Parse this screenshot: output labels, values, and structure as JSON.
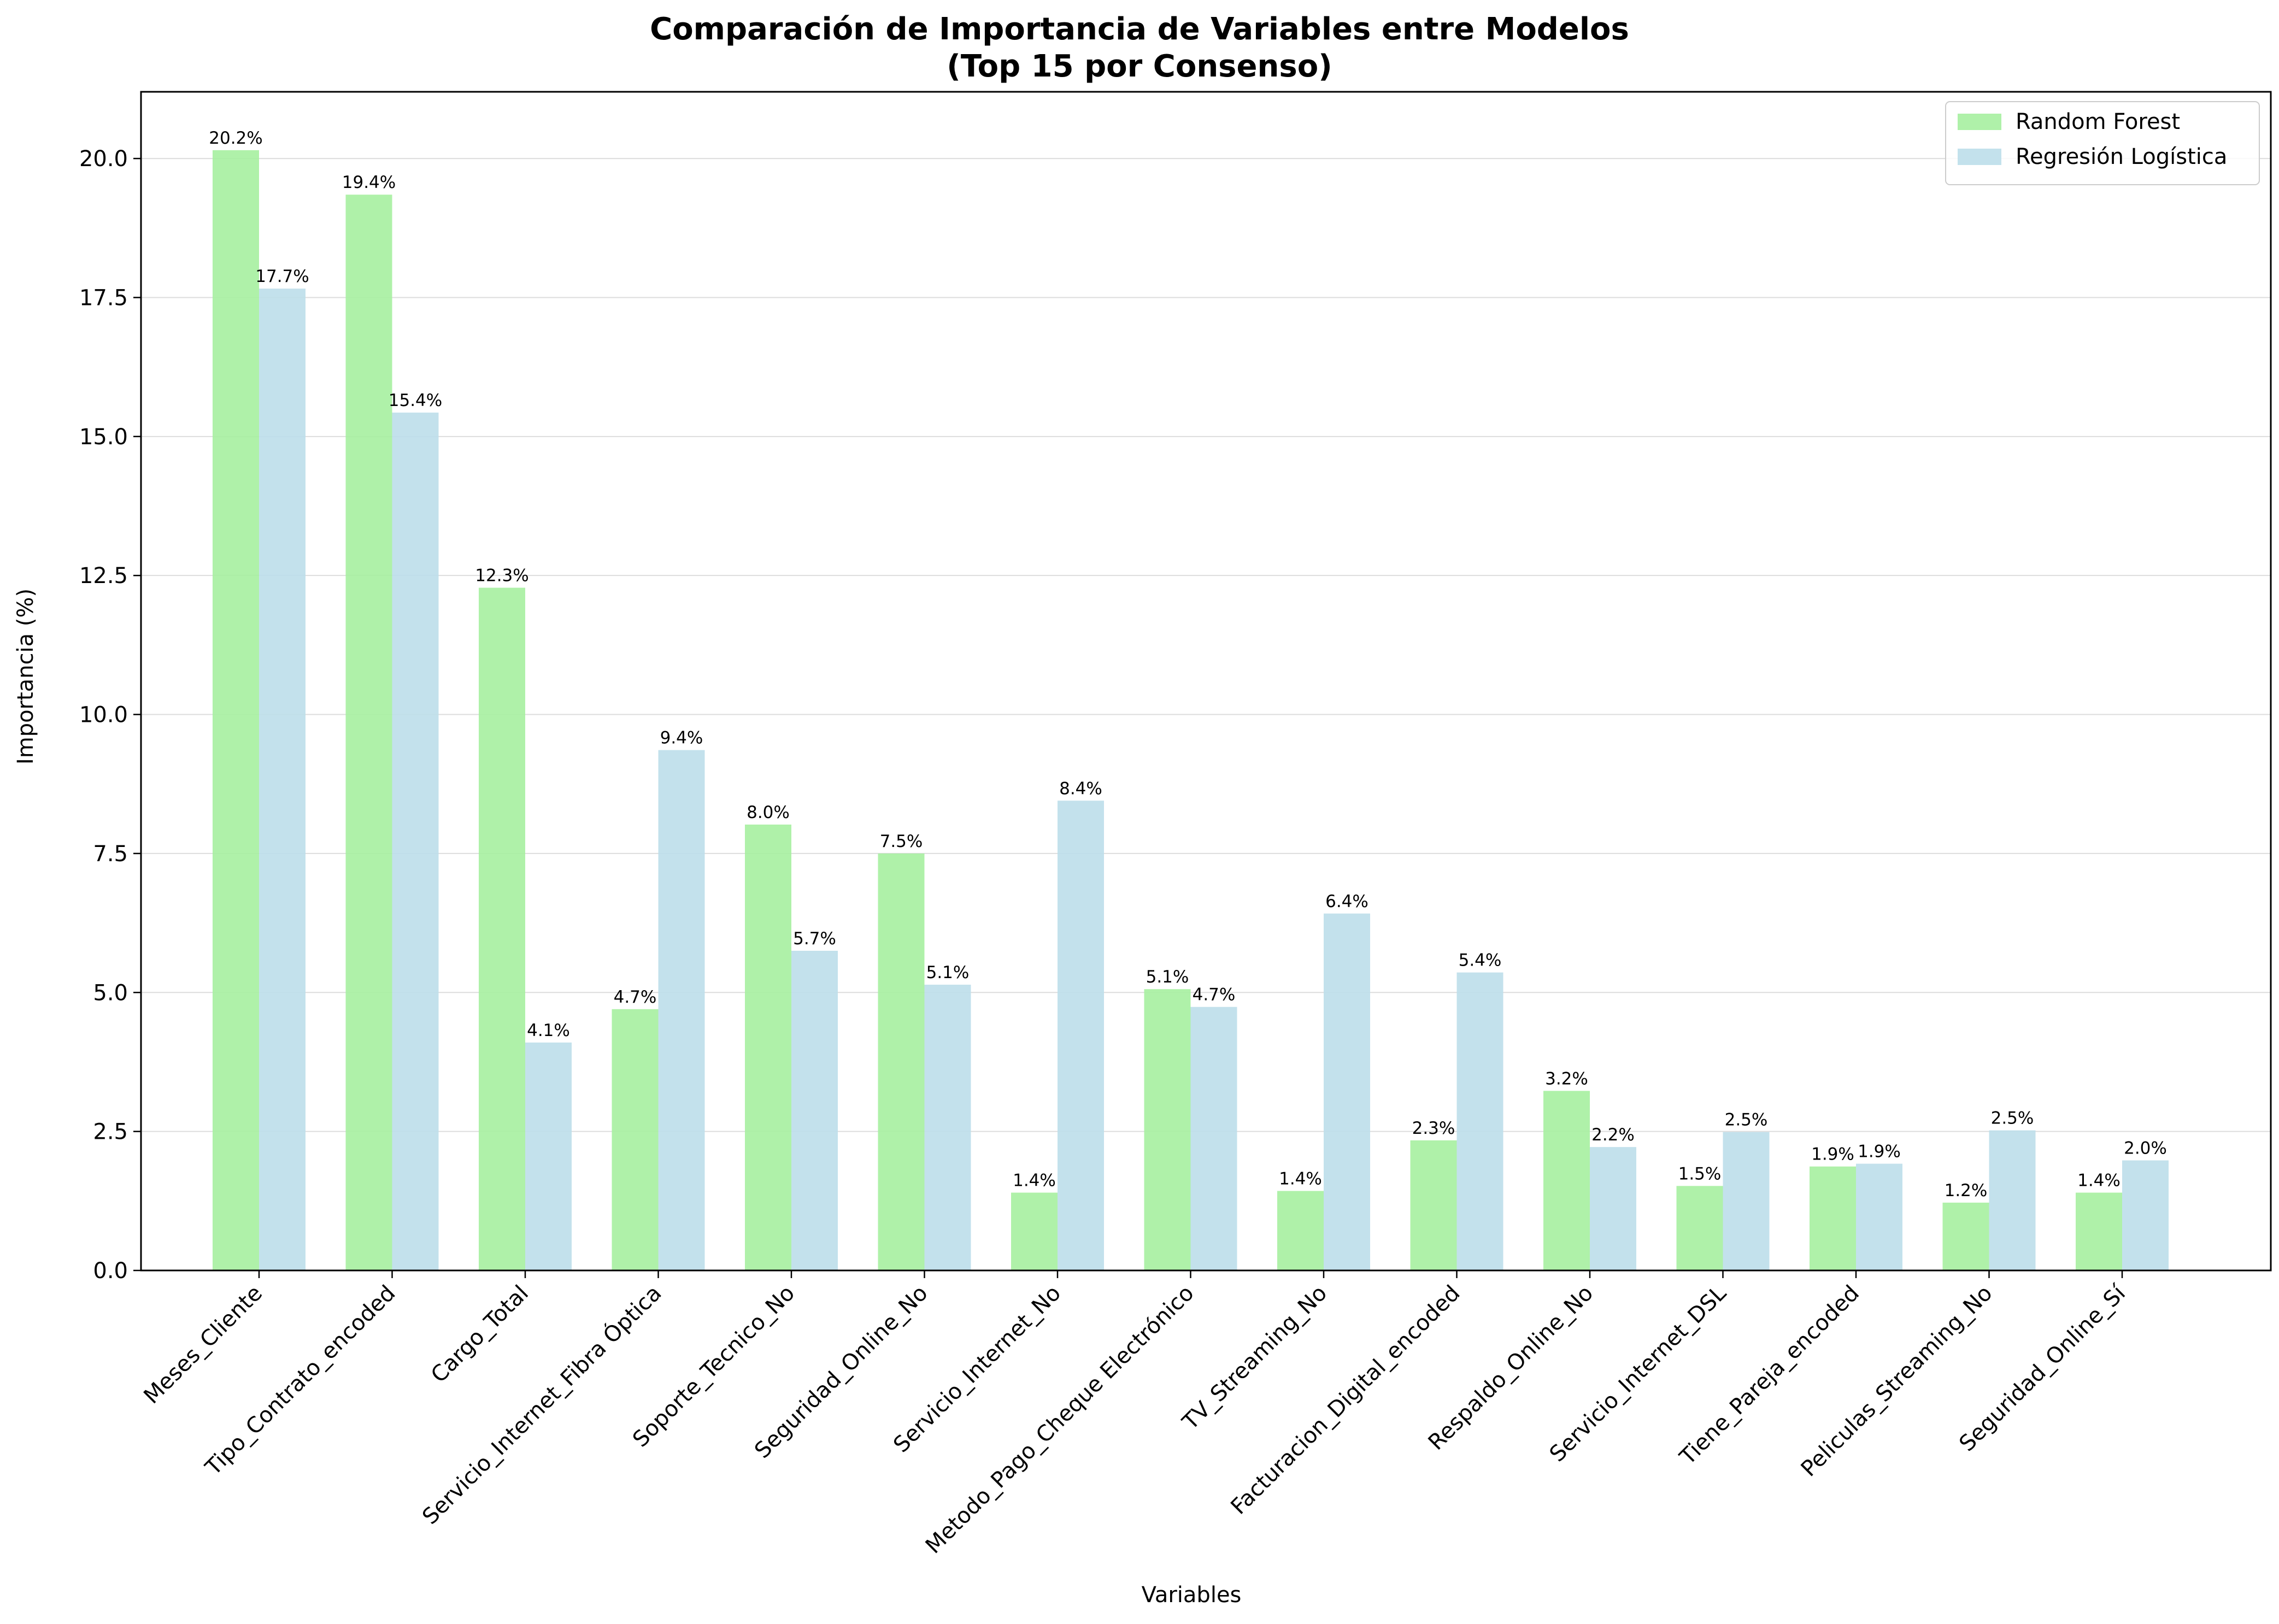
{
  "chart_data": {
    "type": "bar",
    "title": "Comparación de Importancia de Variables entre Modelos",
    "subtitle": "(Top 15 por Consenso)",
    "xlabel": "Variables",
    "ylabel": "Importancia (%)",
    "ylim": [
      0,
      21.2
    ],
    "yticks": [
      "0.0",
      "2.5",
      "5.0",
      "7.5",
      "10.0",
      "12.5",
      "15.0",
      "17.5",
      "20.0"
    ],
    "grid": "horizontal",
    "legend_position": "top-right",
    "categories": [
      "Meses_Cliente",
      "Tipo_Contrato_encoded",
      "Cargo_Total",
      "Servicio_Internet_Fibra Óptica",
      "Soporte_Tecnico_No",
      "Seguridad_Online_No",
      "Servicio_Internet_No",
      "Metodo_Pago_Cheque Electrónico",
      "TV_Streaming_No",
      "Facturacion_Digital_encoded",
      "Respaldo_Online_No",
      "Servicio_Internet_DSL",
      "Tiene_Pareja_encoded",
      "Peliculas_Streaming_No",
      "Seguridad_Online_Sí"
    ],
    "series": [
      {
        "name": "Random Forest",
        "color": "#a6f0a0",
        "values": [
          20.15,
          19.35,
          12.28,
          4.7,
          8.02,
          7.5,
          1.4,
          5.06,
          1.43,
          2.34,
          3.23,
          1.52,
          1.87,
          1.22,
          1.4
        ],
        "labels": [
          "20.2%",
          "19.4%",
          "12.3%",
          "4.7%",
          "8.0%",
          "7.5%",
          "1.4%",
          "5.1%",
          "1.4%",
          "2.3%",
          "3.2%",
          "1.5%",
          "1.9%",
          "1.2%",
          "1.4%"
        ]
      },
      {
        "name": "Regresión Logística",
        "color": "#bddeea",
        "values": [
          17.66,
          15.43,
          4.1,
          9.36,
          5.75,
          5.14,
          8.45,
          4.74,
          6.42,
          5.36,
          2.22,
          2.49,
          1.92,
          2.52,
          1.98
        ],
        "labels": [
          "17.7%",
          "15.4%",
          "4.1%",
          "9.4%",
          "5.7%",
          "5.1%",
          "8.4%",
          "4.7%",
          "6.4%",
          "5.4%",
          "2.2%",
          "2.5%",
          "1.9%",
          "2.5%",
          "2.0%"
        ]
      }
    ]
  }
}
